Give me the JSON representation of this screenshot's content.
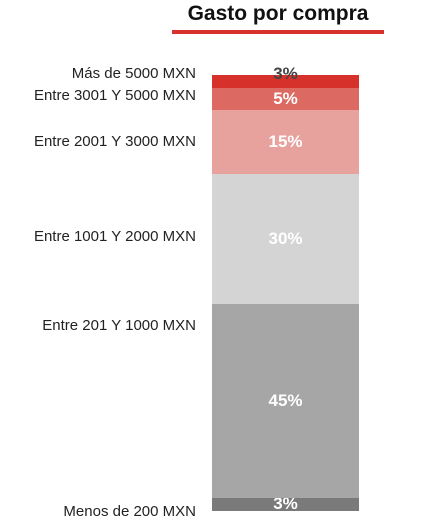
{
  "chart_data": {
    "type": "bar",
    "stacked": true,
    "title": "Gasto por compra",
    "xlabel": "",
    "ylabel": "",
    "ylim": [
      0,
      100
    ],
    "categories": [
      "Menos de 200 MXN",
      "Entre 201 Y 1000 MXN",
      "Entre 1001 Y 2000 MXN",
      "Entre 2001 Y 3000 MXN",
      "Entre 3001 Y 5000 MXN",
      "Más de 5000 MXN"
    ],
    "values": [
      3,
      45,
      30,
      15,
      5,
      3
    ],
    "value_labels": [
      "3%",
      "45%",
      "30%",
      "15%",
      "5%",
      "3%"
    ],
    "colors": [
      "#7a7a7a",
      "#a6a6a6",
      "#d4d4d4",
      "#e8a29d",
      "#dd6a62",
      "#d6322b"
    ],
    "label_colors": [
      "#ffffff",
      "#ffffff",
      "#ffffff",
      "#ffffff",
      "#ffffff",
      "#444444"
    ],
    "title_underline_color": "#d6322b"
  }
}
